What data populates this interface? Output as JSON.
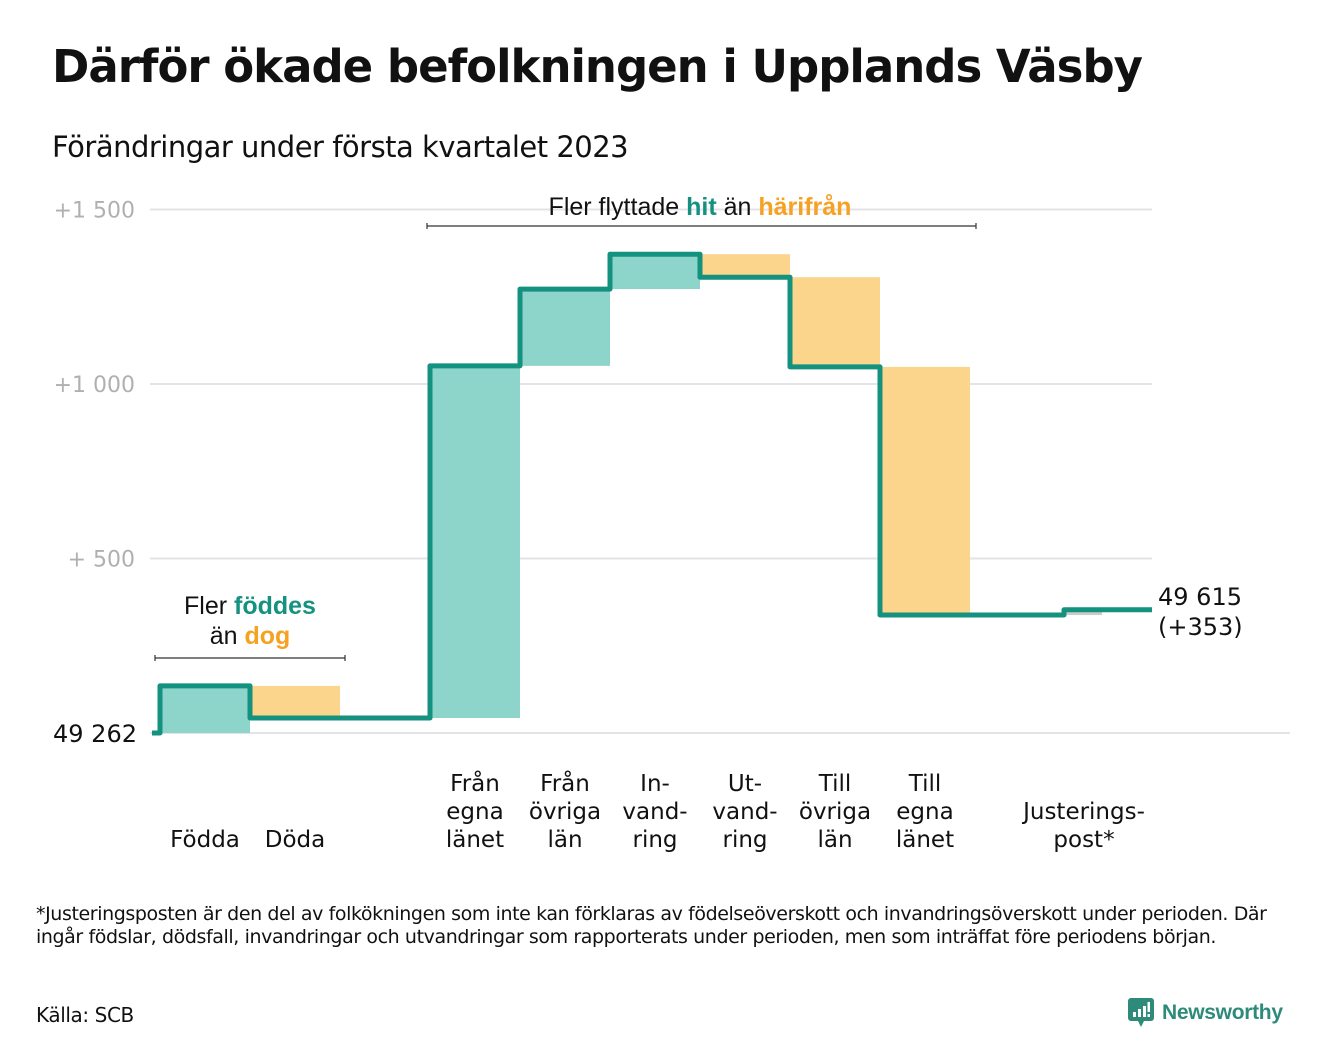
{
  "title": "Därför ökade befolkningen i Upplands Väsby",
  "subtitle": "Förändringar under första kvartalet 2023",
  "colors": {
    "increase_fill": "#8dd4ca",
    "decrease_fill": "#fad58b",
    "line": "#14917f",
    "adjustment_fill": "#cccccc",
    "accent_teal": "#14917f",
    "accent_orange": "#f7a122",
    "grid": "#e3e3e8",
    "tick_text": "#b0b0b0"
  },
  "annotations": {
    "births": {
      "prefix": "Fler ",
      "highlight1": "föddes",
      "line2_prefix": "än ",
      "highlight2": "dog"
    },
    "migration": {
      "prefix": "Fler flyttade ",
      "highlight1": "hit",
      "middle": " än ",
      "highlight2": "härifrån"
    }
  },
  "start_label": "49 262",
  "end_label_line1": "49 615",
  "end_label_line2": "(+353)",
  "chart_data": {
    "type": "waterfall",
    "title": "Därför ökade befolkningen i Upplands Väsby",
    "subtitle": "Förändringar under första kvartalet 2023",
    "start_value": 49262,
    "end_value": 49615,
    "net_change": 353,
    "ylim": [
      0,
      1500
    ],
    "yticks": [
      {
        "value": 500,
        "label": "+ 500"
      },
      {
        "value": 1000,
        "label": "+1 000"
      },
      {
        "value": 1500,
        "label": "+1 500"
      }
    ],
    "grid": true,
    "categories": [
      {
        "label": [
          "Födda"
        ],
        "value": 135,
        "kind": "increase"
      },
      {
        "label": [
          "Döda"
        ],
        "value": -92,
        "kind": "decrease"
      },
      {
        "label": [
          "Från",
          "egna",
          "länet"
        ],
        "value": 1009,
        "kind": "increase"
      },
      {
        "label": [
          "Från",
          "övriga",
          "län"
        ],
        "value": 220,
        "kind": "increase"
      },
      {
        "label": [
          "In-",
          "vand-",
          "ring"
        ],
        "value": 100,
        "kind": "increase"
      },
      {
        "label": [
          "Ut-",
          "vand-",
          "ring"
        ],
        "value": -66,
        "kind": "decrease"
      },
      {
        "label": [
          "Till",
          "övriga",
          "län"
        ],
        "value": -257,
        "kind": "decrease"
      },
      {
        "label": [
          "Till",
          "egna",
          "länet"
        ],
        "value": -711,
        "kind": "decrease"
      },
      {
        "label": [
          "Justerings-",
          "post*"
        ],
        "value": 15,
        "kind": "adjustment"
      }
    ]
  },
  "footnote": "*Justeringsposten är den del av folkökningen som inte kan förklaras av födelseöverskott och invandringsöverskott under perioden. Där ingår födslar, dödsfall, invandringar och utvandringar som rapporterats under perioden, men som inträffat före periodens början.",
  "source": "Källa: SCB",
  "logo": {
    "text": "Newsworthy",
    "icon": "chart-bubble-icon"
  }
}
